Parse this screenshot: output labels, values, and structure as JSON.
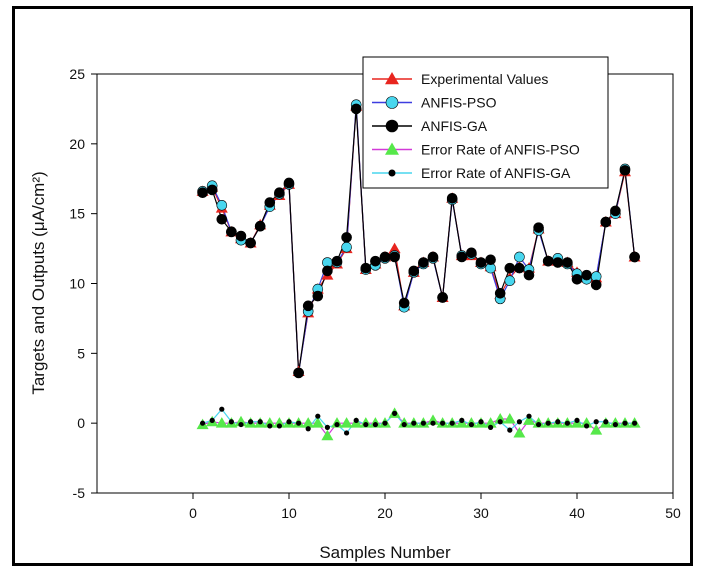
{
  "chart_data": {
    "type": "line",
    "title": "",
    "xlabel": "Samples Number",
    "ylabel": "Targets and Outputs (μA/cm²)",
    "xlim": [
      -10,
      50
    ],
    "ylim": [
      -5,
      25
    ],
    "x_ticks": [
      "0",
      "10",
      "20",
      "30",
      "40",
      "50"
    ],
    "y_ticks": [
      "-5",
      "0",
      "5",
      "10",
      "15",
      "20",
      "25"
    ],
    "grid": false,
    "legend": "top-right",
    "x": [
      1,
      2,
      3,
      4,
      5,
      6,
      7,
      8,
      9,
      10,
      11,
      12,
      13,
      14,
      15,
      16,
      17,
      18,
      19,
      20,
      21,
      22,
      23,
      24,
      25,
      26,
      27,
      28,
      29,
      30,
      31,
      32,
      33,
      34,
      35,
      36,
      37,
      38,
      39,
      40,
      41,
      42,
      43,
      44,
      45,
      46
    ],
    "series": [
      {
        "name": "Experimental Values",
        "color": "#e8251f",
        "marker": "triangle",
        "values": [
          16.6,
          16.9,
          15.4,
          13.7,
          13.2,
          12.9,
          14.2,
          15.6,
          16.3,
          17.1,
          3.7,
          7.9,
          9.6,
          10.6,
          11.4,
          12.5,
          22.7,
          11.0,
          11.4,
          11.9,
          12.5,
          8.4,
          10.8,
          11.5,
          11.9,
          9.0,
          16.1,
          12.0,
          12.0,
          11.5,
          11.2,
          9.2,
          10.4,
          11.2,
          11.1,
          13.9,
          11.6,
          11.6,
          11.5,
          10.8,
          10.4,
          10.4,
          14.4,
          15.0,
          18.0,
          11.9
        ]
      },
      {
        "name": "ANFIS-PSO",
        "color": "#48d6ee",
        "marker": "circle",
        "values": [
          16.6,
          17.0,
          15.6,
          13.7,
          13.1,
          12.9,
          14.1,
          15.5,
          16.4,
          17.1,
          3.6,
          8.0,
          9.6,
          11.5,
          11.5,
          12.6,
          22.8,
          11.0,
          11.3,
          11.8,
          12.0,
          8.3,
          10.8,
          11.4,
          11.8,
          9.0,
          16.0,
          12.0,
          12.1,
          11.4,
          11.1,
          8.9,
          10.2,
          11.9,
          11.0,
          13.8,
          11.6,
          11.8,
          11.4,
          10.7,
          10.3,
          10.5,
          14.4,
          15.0,
          18.2,
          11.9
        ]
      },
      {
        "name": "ANFIS-GA",
        "color": "#000000",
        "marker": "circle",
        "values": [
          16.5,
          16.7,
          14.6,
          13.7,
          13.4,
          12.9,
          14.1,
          15.8,
          16.5,
          17.2,
          3.6,
          8.4,
          9.1,
          10.9,
          11.6,
          13.3,
          22.5,
          11.1,
          11.6,
          11.9,
          11.9,
          8.6,
          10.9,
          11.5,
          11.9,
          9.0,
          16.1,
          11.9,
          12.2,
          11.5,
          11.7,
          9.3,
          11.1,
          11.1,
          10.6,
          14.0,
          11.6,
          11.5,
          11.5,
          10.3,
          10.6,
          9.9,
          14.4,
          15.2,
          18.1,
          11.9
        ]
      },
      {
        "name": "Error Rate of ANFIS-PSO",
        "color": "#56e84a",
        "line_color": "#d23ad8",
        "marker": "triangle",
        "values": [
          -0.1,
          0.1,
          0.0,
          0.0,
          0.1,
          0.0,
          0.0,
          0.0,
          0.0,
          0.0,
          0.0,
          0.0,
          0.0,
          -0.9,
          0.0,
          0.0,
          0.0,
          0.0,
          0.0,
          0.0,
          0.7,
          0.0,
          0.0,
          0.0,
          0.2,
          0.0,
          0.0,
          0.0,
          0.0,
          0.0,
          0.0,
          0.3,
          0.3,
          -0.7,
          0.2,
          0.0,
          0.0,
          0.0,
          0.0,
          0.0,
          0.0,
          -0.5,
          0.0,
          0.0,
          0.0,
          0.0
        ]
      },
      {
        "name": "Error Rate of ANFIS-GA",
        "color": "#000000",
        "line_color": "#48d6ee",
        "marker": "dot",
        "values": [
          0.0,
          0.2,
          1.0,
          0.1,
          -0.1,
          0.1,
          0.1,
          -0.2,
          -0.2,
          0.1,
          0.0,
          -0.4,
          0.5,
          -0.3,
          -0.1,
          -0.7,
          0.2,
          -0.1,
          -0.1,
          0.0,
          0.7,
          -0.1,
          0.0,
          0.0,
          0.0,
          0.0,
          0.0,
          0.2,
          -0.1,
          0.1,
          -0.3,
          0.1,
          -0.5,
          0.1,
          0.5,
          -0.1,
          0.0,
          0.1,
          0.0,
          0.2,
          -0.2,
          0.1,
          0.1,
          -0.1,
          0.0,
          0.0
        ]
      }
    ]
  }
}
